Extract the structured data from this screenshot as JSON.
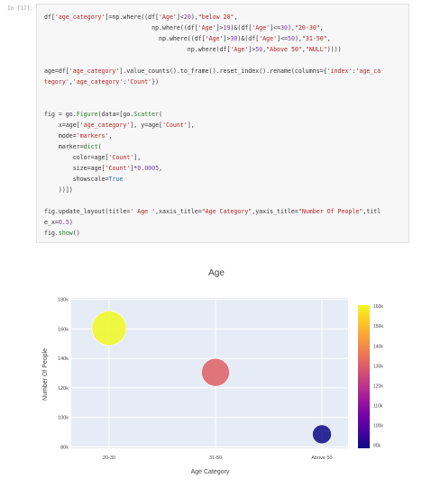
{
  "cell": {
    "prompt": "In [17]:",
    "code_lines": [
      [
        {
          "t": "df["
        },
        {
          "t": "'age_category'",
          "c": "str"
        },
        {
          "t": "]=np.where((df["
        },
        {
          "t": "'Age'",
          "c": "str"
        },
        {
          "t": "]<"
        },
        {
          "t": "20",
          "c": "num"
        },
        {
          "t": "),"
        },
        {
          "t": "\"below 20\"",
          "c": "str"
        },
        {
          "t": ","
        }
      ],
      [
        {
          "t": "                              np.where((df["
        },
        {
          "t": "'Age'",
          "c": "str"
        },
        {
          "t": "]>"
        },
        {
          "t": "19",
          "c": "num"
        },
        {
          "t": ")&(df["
        },
        {
          "t": "'Age'",
          "c": "str"
        },
        {
          "t": "]<="
        },
        {
          "t": "30",
          "c": "num"
        },
        {
          "t": "),"
        },
        {
          "t": "\"20-30\"",
          "c": "str"
        },
        {
          "t": ","
        }
      ],
      [
        {
          "t": "                                np.where((df["
        },
        {
          "t": "'Age'",
          "c": "str"
        },
        {
          "t": "]>"
        },
        {
          "t": "30",
          "c": "num"
        },
        {
          "t": ")&(df["
        },
        {
          "t": "'Age'",
          "c": "str"
        },
        {
          "t": "]<="
        },
        {
          "t": "50",
          "c": "num"
        },
        {
          "t": "),"
        },
        {
          "t": "\"31-50\"",
          "c": "str"
        },
        {
          "t": ","
        }
      ],
      [
        {
          "t": "                                        np.where(df["
        },
        {
          "t": "'Age'",
          "c": "str"
        },
        {
          "t": "]>"
        },
        {
          "t": "50",
          "c": "num"
        },
        {
          "t": ","
        },
        {
          "t": "\"Above 50\"",
          "c": "str"
        },
        {
          "t": ","
        },
        {
          "t": "\"NULL\"",
          "c": "str"
        },
        {
          "t": "))))"
        }
      ],
      [],
      [
        {
          "t": "age=df["
        },
        {
          "t": "'age_category'",
          "c": "str"
        },
        {
          "t": "].value_counts().to_frame().reset_index().rename(columns={"
        },
        {
          "t": "'index'",
          "c": "str"
        },
        {
          "t": ":"
        },
        {
          "t": "'age_ca",
          "c": "str"
        }
      ],
      [
        {
          "t": "tegory'",
          "c": "str"
        },
        {
          "t": ","
        },
        {
          "t": "'age_category'",
          "c": "str"
        },
        {
          "t": ":"
        },
        {
          "t": "'Count'",
          "c": "str"
        },
        {
          "t": "})"
        }
      ],
      [],
      [],
      [
        {
          "t": "fig = go."
        },
        {
          "t": "Figure",
          "c": "fn"
        },
        {
          "t": "(data=[go."
        },
        {
          "t": "Scatter",
          "c": "fn"
        },
        {
          "t": "("
        }
      ],
      [
        {
          "t": "    x=age["
        },
        {
          "t": "'age_category'",
          "c": "str"
        },
        {
          "t": "], y=age["
        },
        {
          "t": "'Count'",
          "c": "str"
        },
        {
          "t": "],"
        }
      ],
      [
        {
          "t": "    mode="
        },
        {
          "t": "'markers'",
          "c": "str"
        },
        {
          "t": ","
        }
      ],
      [
        {
          "t": "    marker="
        },
        {
          "t": "dict",
          "c": "fn"
        },
        {
          "t": "("
        }
      ],
      [
        {
          "t": "        color=age["
        },
        {
          "t": "'Count'",
          "c": "str"
        },
        {
          "t": "],"
        }
      ],
      [
        {
          "t": "        size=age["
        },
        {
          "t": "'Count'",
          "c": "str"
        },
        {
          "t": "]*"
        },
        {
          "t": "0.0005",
          "c": "num"
        },
        {
          "t": ","
        }
      ],
      [
        {
          "t": "        showscale="
        },
        {
          "t": "True",
          "c": "kw"
        }
      ],
      [
        {
          "t": "    ))])"
        }
      ],
      [],
      [
        {
          "t": "fig.update_layout(title="
        },
        {
          "t": "' Age '",
          "c": "str"
        },
        {
          "t": ",xaxis_title="
        },
        {
          "t": "\"Age Category\"",
          "c": "str"
        },
        {
          "t": ",yaxis_title="
        },
        {
          "t": "\"Number Of People\"",
          "c": "str"
        },
        {
          "t": ",titl"
        }
      ],
      [
        {
          "t": "e_x="
        },
        {
          "t": "0.5",
          "c": "num"
        },
        {
          "t": ")"
        }
      ],
      [
        {
          "t": "fig."
        },
        {
          "t": "show",
          "c": "fn"
        },
        {
          "t": "()"
        }
      ]
    ]
  },
  "chart_data": {
    "type": "scatter",
    "title": "Age",
    "xlabel": "Age Category",
    "ylabel": "Number Of People",
    "categories": [
      "20-30",
      "31-50",
      "Above 50"
    ],
    "values": [
      160500,
      130500,
      88500
    ],
    "ylim": [
      79000,
      181000
    ],
    "yticks": [
      80000,
      100000,
      120000,
      140000,
      160000,
      180000
    ],
    "ytick_labels": [
      "80k",
      "100k",
      "120k",
      "140k",
      "160k",
      "180k"
    ],
    "marker_size_factor": 0.0005,
    "colorscale": [
      "#0d0887",
      "#46039f",
      "#7201a8",
      "#9c179e",
      "#bd3786",
      "#d8576b",
      "#ed7953",
      "#fb9f3a",
      "#fdca26",
      "#f0f921"
    ],
    "colorbar": {
      "range": [
        88500,
        160500
      ],
      "ticks": [
        90000,
        100000,
        110000,
        120000,
        130000,
        140000,
        150000,
        160000
      ],
      "tick_labels": [
        "90k",
        "100k",
        "110k",
        "120k",
        "130k",
        "140k",
        "150k",
        "160k"
      ]
    },
    "plot_bgcolor": "#e5ecf6",
    "grid": true,
    "showscale": true
  }
}
